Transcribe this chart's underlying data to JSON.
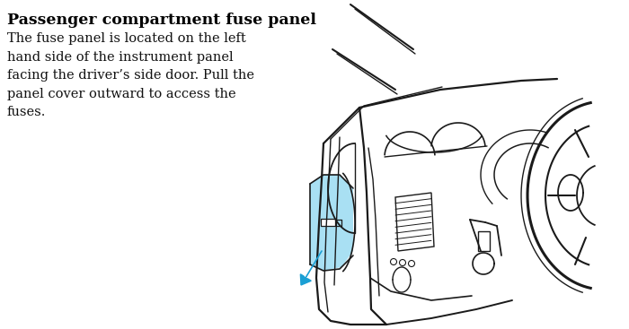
{
  "title": "Passenger compartment fuse panel",
  "body_text": "The fuse panel is located on the left\nhand side of the instrument panel\nfacing the driver’s side door. Pull the\npanel cover outward to access the\nfuses.",
  "bg_color": "#ffffff",
  "title_color": "#000000",
  "body_color": "#111111",
  "arrow_color": "#1a9fd4",
  "highlight_color": "#8dd6f0",
  "line_color": "#1a1a1a",
  "title_fontsize": 12.5,
  "body_fontsize": 10.5,
  "lw_main": 1.4,
  "lw_thin": 0.8
}
